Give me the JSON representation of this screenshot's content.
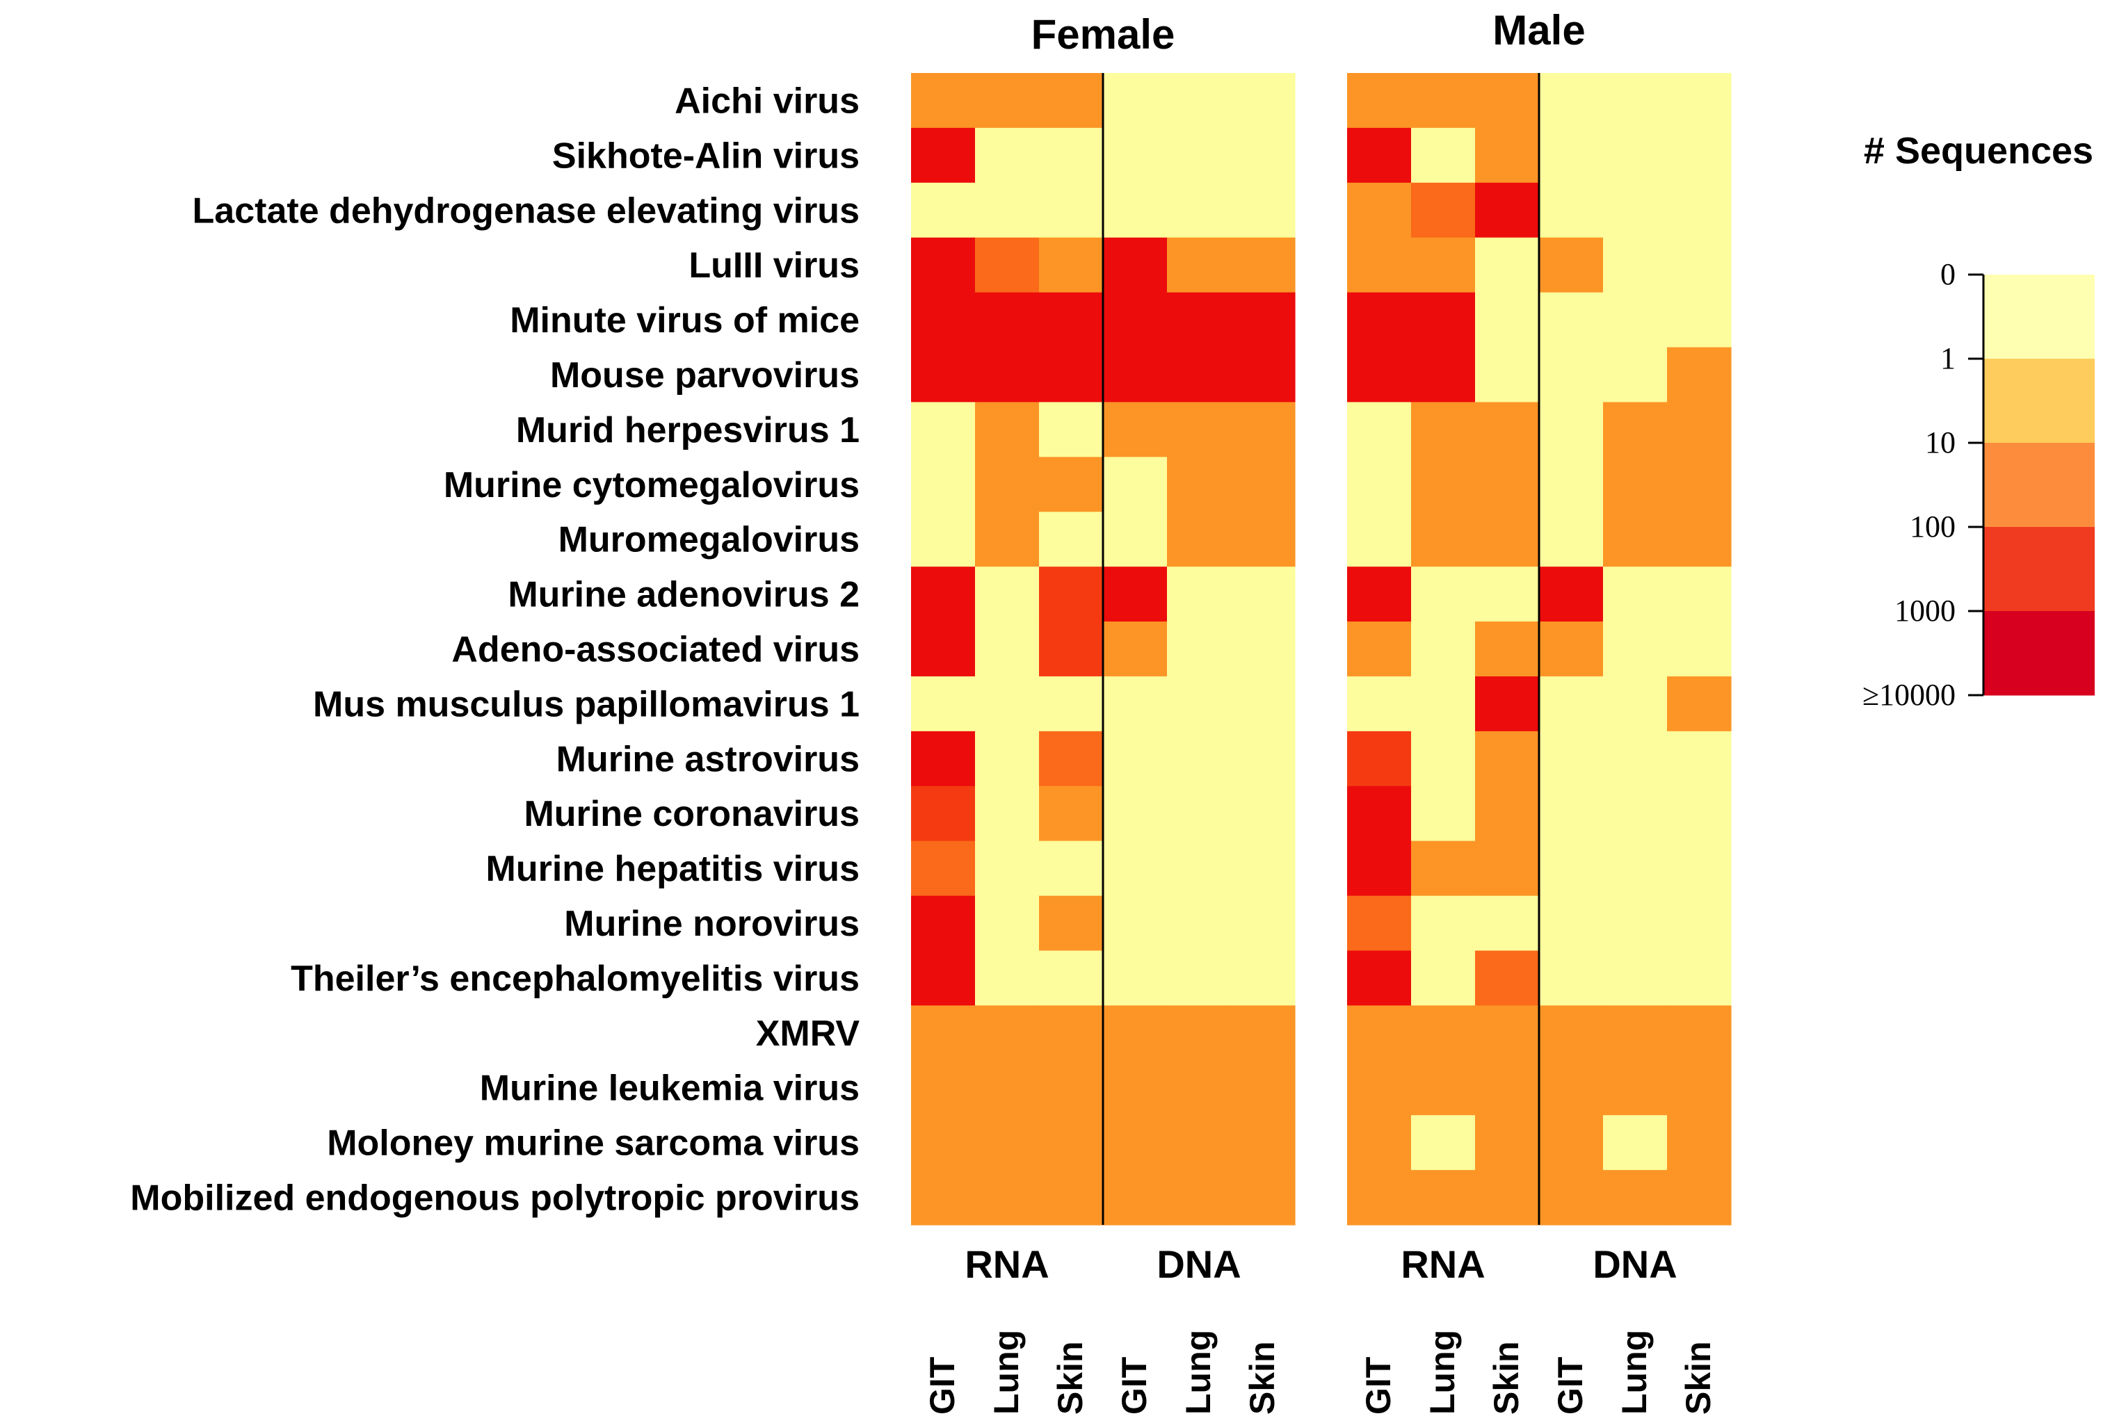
{
  "chart_data": {
    "type": "heatmap",
    "title": "",
    "panels": [
      {
        "name": "Female",
        "groups": [
          {
            "label": "RNA",
            "tissues": [
              "GIT",
              "Lung",
              "Skin"
            ]
          },
          {
            "label": "DNA",
            "tissues": [
              "GIT",
              "Lung",
              "Skin"
            ]
          }
        ]
      },
      {
        "name": "Male",
        "groups": [
          {
            "label": "RNA",
            "tissues": [
              "GIT",
              "Lung",
              "Skin"
            ]
          },
          {
            "label": "DNA",
            "tissues": [
              "GIT",
              "Lung",
              "Skin"
            ]
          }
        ]
      }
    ],
    "rows": [
      "Aichi virus",
      "Sikhote-Alin virus",
      "Lactate dehydrogenase elevating virus",
      "LuIII virus",
      "Minute virus of mice",
      "Mouse parvovirus",
      "Murid herpesvirus 1",
      "Murine cytomegalovirus",
      "Muromegalovirus",
      "Murine adenovirus 2",
      "Adeno-associated virus",
      "Mus musculus papillomavirus 1",
      "Murine astrovirus",
      "Murine coronavirus",
      "Murine hepatitis virus",
      "Murine norovirus",
      "Theiler’s encephalomyelitis virus",
      "XMRV",
      "Murine leukemia virus",
      "Moloney murine sarcoma virus",
      "Mobilized endogenous polytropic provirus"
    ],
    "column_order": "Female RNA GIT, Lung, Skin | Female DNA GIT, Lung, Skin | Male RNA GIT, Lung, Skin | Male DNA GIT, Lung, Skin",
    "bin_index_note": "0 = 0 sequences, 1 = 1-10, 2 = 10-100, 3 = 100-1000, 4 = 1000-10000, 5 = >=10000",
    "values": [
      [
        2,
        2,
        2,
        0,
        0,
        0,
        2,
        2,
        2,
        0,
        0,
        0
      ],
      [
        5,
        0,
        0,
        0,
        0,
        0,
        5,
        0,
        2,
        0,
        0,
        0
      ],
      [
        0,
        0,
        0,
        0,
        0,
        0,
        2,
        3,
        5,
        0,
        0,
        0
      ],
      [
        5,
        3,
        2,
        5,
        2,
        2,
        2,
        2,
        0,
        2,
        0,
        0
      ],
      [
        5,
        5,
        5,
        5,
        5,
        5,
        5,
        5,
        0,
        0,
        0,
        0
      ],
      [
        5,
        5,
        5,
        5,
        5,
        5,
        5,
        5,
        0,
        0,
        0,
        2
      ],
      [
        0,
        2,
        0,
        2,
        2,
        2,
        0,
        2,
        2,
        0,
        2,
        2
      ],
      [
        0,
        2,
        2,
        0,
        2,
        2,
        0,
        2,
        2,
        0,
        2,
        2
      ],
      [
        0,
        2,
        0,
        0,
        2,
        2,
        0,
        2,
        2,
        0,
        2,
        2
      ],
      [
        5,
        0,
        4,
        5,
        0,
        0,
        5,
        0,
        0,
        5,
        0,
        0
      ],
      [
        5,
        0,
        4,
        2,
        0,
        0,
        2,
        0,
        2,
        2,
        0,
        0
      ],
      [
        0,
        0,
        0,
        0,
        0,
        0,
        0,
        0,
        5,
        0,
        0,
        2
      ],
      [
        5,
        0,
        3,
        0,
        0,
        0,
        4,
        0,
        2,
        0,
        0,
        0
      ],
      [
        4,
        0,
        2,
        0,
        0,
        0,
        5,
        0,
        2,
        0,
        0,
        0
      ],
      [
        3,
        0,
        0,
        0,
        0,
        0,
        5,
        2,
        2,
        0,
        0,
        0
      ],
      [
        5,
        0,
        2,
        0,
        0,
        0,
        3,
        0,
        0,
        0,
        0,
        0
      ],
      [
        5,
        0,
        0,
        0,
        0,
        0,
        5,
        0,
        3,
        0,
        0,
        0
      ],
      [
        2,
        2,
        2,
        2,
        2,
        2,
        2,
        2,
        2,
        2,
        2,
        2
      ],
      [
        2,
        2,
        2,
        2,
        2,
        2,
        2,
        2,
        2,
        2,
        2,
        2
      ],
      [
        2,
        2,
        2,
        2,
        2,
        2,
        2,
        0,
        2,
        2,
        0,
        2
      ],
      [
        2,
        2,
        2,
        2,
        2,
        2,
        2,
        2,
        2,
        2,
        2,
        2
      ]
    ],
    "cell_colors": [
      "#FDFD9D",
      "#FCA02A",
      "#FC9526",
      "#FA6A1A",
      "#F53A12",
      "#EC0C0C"
    ],
    "legend": {
      "title": "# Sequences",
      "ticks": [
        "0",
        "1",
        "10",
        "100",
        "1000",
        "≥10000"
      ],
      "colors": [
        "#FFFFB2",
        "#FECC5C",
        "#FD8D3C",
        "#F03B20",
        "#D7001F"
      ]
    }
  }
}
